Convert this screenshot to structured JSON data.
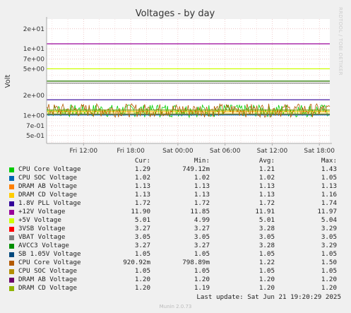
{
  "rrd_label": "RRDTOOL / TOBI OETIKER",
  "footer": "Munin 2.0.73",
  "last_update": "Last update: Sat Jun 21 19:20:29 2025",
  "chart_data": {
    "type": "line",
    "title": "Voltages - by day",
    "ylabel": "Volt",
    "yscale": "log",
    "ylim": [
      0.38,
      28
    ],
    "y_ticks": [
      {
        "value": 0.5,
        "label": "5e-01"
      },
      {
        "value": 0.7,
        "label": "7e-01"
      },
      {
        "value": 1,
        "label": "1e+00"
      },
      {
        "value": 2,
        "label": "2e+00"
      },
      {
        "value": 5,
        "label": "5e+00"
      },
      {
        "value": 7,
        "label": "7e+00"
      },
      {
        "value": 10,
        "label": "1e+01"
      },
      {
        "value": 20,
        "label": "2e+01"
      }
    ],
    "x_ticks": [
      "Fri 12:00",
      "Fri 18:00",
      "Sat 00:00",
      "Sat 06:00",
      "Sat 12:00",
      "Sat 18:00"
    ],
    "x_tick_hours": [
      12,
      18,
      24,
      30,
      36,
      42
    ],
    "xlim_hours": [
      7.3,
      43.33
    ],
    "grid": true,
    "columns": [
      "Cur:",
      "Min:",
      "Avg:",
      "Max:"
    ],
    "series": [
      {
        "name": "CPU Core Voltage",
        "color": "#00cc00",
        "cur": "1.29",
        "min": "749.12m",
        "avg": "1.21",
        "max": "1.43",
        "mean": 1.21,
        "lo": 0.749,
        "hi": 1.43,
        "noisy": true
      },
      {
        "name": "CPU SOC Voltage",
        "color": "#0066b3",
        "cur": "1.02",
        "min": "1.02",
        "avg": "1.02",
        "max": "1.05",
        "mean": 1.02,
        "lo": 1.02,
        "hi": 1.05,
        "noisy": false
      },
      {
        "name": "DRAM AB Voltage",
        "color": "#ff8000",
        "cur": "1.13",
        "min": "1.13",
        "avg": "1.13",
        "max": "1.13",
        "mean": 1.13,
        "lo": 1.13,
        "hi": 1.13,
        "noisy": false
      },
      {
        "name": "DRAM CD Voltage",
        "color": "#ffcc00",
        "cur": "1.13",
        "min": "1.13",
        "avg": "1.13",
        "max": "1.16",
        "mean": 1.13,
        "lo": 1.13,
        "hi": 1.16,
        "noisy": false
      },
      {
        "name": "1.8V PLL Voltage",
        "color": "#330099",
        "cur": "1.72",
        "min": "1.72",
        "avg": "1.72",
        "max": "1.74",
        "mean": 1.72,
        "lo": 1.72,
        "hi": 1.74,
        "noisy": false
      },
      {
        "name": "+12V Voltage",
        "color": "#990099",
        "cur": "11.90",
        "min": "11.85",
        "avg": "11.91",
        "max": "11.97",
        "mean": 11.91,
        "lo": 11.85,
        "hi": 11.97,
        "noisy": false
      },
      {
        "name": "+5V Voltage",
        "color": "#ccff00",
        "cur": "5.01",
        "min": "4.99",
        "avg": "5.01",
        "max": "5.04",
        "mean": 5.01,
        "lo": 4.99,
        "hi": 5.04,
        "noisy": false
      },
      {
        "name": "3VSB Voltage",
        "color": "#ff0000",
        "cur": "3.27",
        "min": "3.27",
        "avg": "3.28",
        "max": "3.29",
        "mean": 3.28,
        "lo": 3.27,
        "hi": 3.29,
        "noisy": false
      },
      {
        "name": "VBAT Voltage",
        "color": "#808080",
        "cur": "3.05",
        "min": "3.05",
        "avg": "3.05",
        "max": "3.05",
        "mean": 3.05,
        "lo": 3.05,
        "hi": 3.05,
        "noisy": false
      },
      {
        "name": "AVCC3 Voltage",
        "color": "#008f00",
        "cur": "3.27",
        "min": "3.27",
        "avg": "3.28",
        "max": "3.29",
        "mean": 3.28,
        "lo": 3.27,
        "hi": 3.29,
        "noisy": false
      },
      {
        "name": "SB 1.05V Voltage",
        "color": "#00487d",
        "cur": "1.05",
        "min": "1.05",
        "avg": "1.05",
        "max": "1.05",
        "mean": 1.05,
        "lo": 1.05,
        "hi": 1.05,
        "noisy": false
      },
      {
        "name": "CPU Core Voltage",
        "color": "#b35a00",
        "cur": "920.92m",
        "min": "798.89m",
        "avg": "1.22",
        "max": "1.50",
        "mean": 1.22,
        "lo": 0.799,
        "hi": 1.5,
        "noisy": true
      },
      {
        "name": "CPU SOC Voltage",
        "color": "#b38f00",
        "cur": "1.05",
        "min": "1.05",
        "avg": "1.05",
        "max": "1.05",
        "mean": 1.05,
        "lo": 1.05,
        "hi": 1.05,
        "noisy": false
      },
      {
        "name": "DRAM AB Voltage",
        "color": "#6b006b",
        "cur": "1.20",
        "min": "1.20",
        "avg": "1.20",
        "max": "1.20",
        "mean": 1.2,
        "lo": 1.2,
        "hi": 1.2,
        "noisy": false
      },
      {
        "name": "DRAM CD Voltage",
        "color": "#8fb300",
        "cur": "1.20",
        "min": "1.19",
        "avg": "1.20",
        "max": "1.20",
        "mean": 1.2,
        "lo": 1.19,
        "hi": 1.2,
        "noisy": false
      }
    ]
  }
}
